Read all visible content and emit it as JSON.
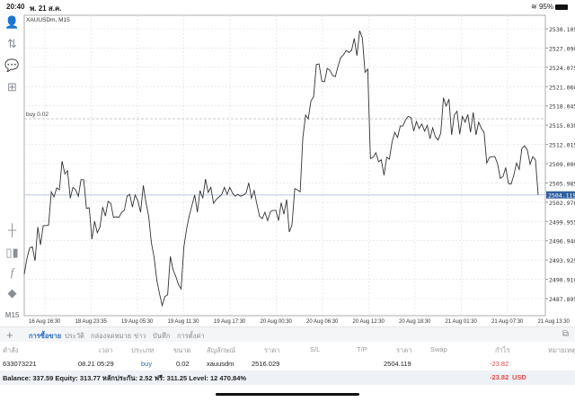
{
  "status": {
    "time": "20:40",
    "date": "พ. 21 ส.ค.",
    "battery": "95%"
  },
  "chart": {
    "symbol_label": "XAUUSDm, M15",
    "buy_line_label": "buy 0.02",
    "current_price": "2504.119",
    "timeframe": "M15"
  },
  "chart_data": {
    "type": "line",
    "title": "XAUUSDm, M15",
    "y_ticks": [
      "2530.105",
      "2527.090",
      "2524.075",
      "2521.060",
      "2518.045",
      "2515.030",
      "2512.015",
      "2509.000",
      "2505.985",
      "2502.970",
      "2499.955",
      "2496.940",
      "2493.925",
      "2490.910",
      "2487.895"
    ],
    "ylim": [
      2485.0,
      2532.5
    ],
    "x_ticks": [
      "16 Aug 16:30",
      "18 Aug 23:35",
      "19 Aug 05:30",
      "19 Aug 11:30",
      "19 Aug 17:30",
      "20 Aug 00:30",
      "20 Aug 06:30",
      "20 Aug 12:30",
      "20 Aug 18:30",
      "21 Aug 01:30",
      "21 Aug 07:30",
      "21 Aug 13:30"
    ],
    "grid": true,
    "buy_level": 2516.029,
    "last_price": 2504.119,
    "colors": {
      "line": "#333333",
      "price_tag": "#2f5f9e",
      "grid": "#dddddd"
    },
    "close": [
      2491.7,
      2494.2,
      2495.8,
      2496.0,
      2493.8,
      2499.1,
      2496.3,
      2499.3,
      2499.3,
      2499.4,
      2504.6,
      2503.8,
      2505.2,
      2504.9,
      2509.4,
      2507.4,
      2507.9,
      2503.6,
      2505.3,
      2504.9,
      2503.9,
      2506.5,
      2506.5,
      2502.0,
      2502.1,
      2497.2,
      2500.0,
      2498.2,
      2499.1,
      2502.2,
      2500.8,
      2503.1,
      2502.8,
      2500.6,
      2500.7,
      2500.6,
      2501.4,
      2501.7,
      2503.9,
      2504.2,
      2502.2,
      2504.1,
      2503.2,
      2501.4,
      2505.6,
      2502.9,
      2500.8,
      2496.6,
      2494.4,
      2490.8,
      2488.7,
      2486.8,
      2488.2,
      2488.5,
      2494.5,
      2492.4,
      2491.4,
      2490.1,
      2489.4,
      2495.9,
      2498.7,
      2500.8,
      2502.5,
      2504.1,
      2501.4,
      2504.8,
      2503.6,
      2506.6,
      2504.5,
      2505.3,
      2502.8,
      2503.4,
      2503.8,
      2504.2,
      2505.3,
      2504.2,
      2505.3,
      2504.4,
      2503.9,
      2504.2,
      2503.9,
      2504.1,
      2504.4,
      2506.0,
      2503.6,
      2504.8,
      2502.7,
      2500.8,
      2500.4,
      2501.4,
      2500.1,
      2501.5,
      2501.7,
      2501.7,
      2500.1,
      2502.9,
      2501.1,
      2503.4,
      2498.3,
      2499.4,
      2505.1,
      2504.9,
      2504.6,
      2513.1,
      2516.6,
      2516.0,
      2518.8,
      2519.5,
      2524.5,
      2524.6,
      2521.9,
      2521.8,
      2523.9,
      2523.6,
      2522.8,
      2522.6,
      2524.2,
      2525.6,
      2526.0,
      2526.7,
      2526.4,
      2526.7,
      2528.6,
      2525.9,
      2529.8,
      2528.7,
      2523.3,
      2523.8,
      2509.8,
      2510.0,
      2510.7,
      2509.3,
      2509.6,
      2507.2,
      2510.0,
      2509.7,
      2512.4,
      2513.9,
      2513.1,
      2514.9,
      2514.9,
      2515.9,
      2516.4,
      2516.2,
      2514.1,
      2515.6,
      2514.5,
      2515.2,
      2514.1,
      2515.0,
      2512.9,
      2514.6,
      2513.2,
      2512.7,
      2513.8,
      2519.3,
      2518.0,
      2519.1,
      2513.5,
      2516.6,
      2517.2,
      2513.6,
      2516.4,
      2515.5,
      2516.7,
      2513.9,
      2517.0,
      2513.5,
      2515.5,
      2514.5,
      2513.9,
      2509.1,
      2510.0,
      2510.1,
      2510.1,
      2509.0,
      2506.7,
      2507.0,
      2508.4,
      2505.9,
      2505.8,
      2507.2,
      2509.1,
      2508.1,
      2511.4,
      2511.8,
      2511.1,
      2508.9,
      2510.1,
      2509.6,
      2504.119
    ]
  },
  "toolbar": {
    "icons": [
      "account-icon",
      "trade-icon",
      "chat-icon",
      "new-order-icon",
      "crosshair-icon",
      "chart-type-icon",
      "indicators-icon",
      "objects-icon"
    ]
  },
  "tabs": {
    "items": [
      "การซื้อขาย",
      "ประวัติ",
      "กล่องจดหมาย",
      "ข่าว",
      "บันทึก",
      "การตั้งค่า"
    ],
    "active": 0
  },
  "table": {
    "headers": [
      "คำสั่ง",
      "เวลา",
      "ประเภท",
      "ขนาด",
      "สัญลักษณ์",
      "ราคา",
      "S/L",
      "T/P",
      "ราคา",
      "Swap",
      "กำไร",
      "หมายเหตุ"
    ],
    "row": {
      "order": "633073221",
      "time": "08.21 05:29",
      "type": "buy",
      "size": "0.02",
      "symbol": "xauusdm",
      "open_price": "2516.029",
      "sl": "",
      "tp": "",
      "price": "2504.119",
      "swap": "",
      "profit": "-23.82",
      "comment": ""
    }
  },
  "balance": {
    "text": "Balance: 337.59 Equity: 313.77 หลักประกัน: 2.52 ฟรี: 311.25 Level: 12 470.84%",
    "profit": "-23.82",
    "currency": "USD"
  }
}
